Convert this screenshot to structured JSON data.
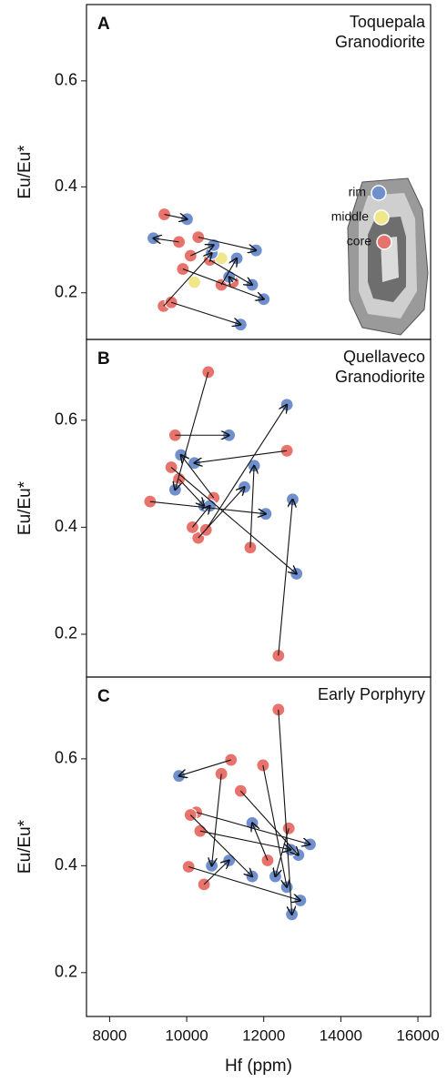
{
  "chart_data": [
    {
      "type": "scatter",
      "panel": "A",
      "title": "Toquepala Granodiorite",
      "ylabel": "Eu/Eu*",
      "xlim": [
        7400,
        16330
      ],
      "ylim": [
        0.112,
        0.744
      ],
      "yticks": [
        0.2,
        0.4,
        0.6
      ],
      "series": [
        {
          "name": "core",
          "color": "#e8736c",
          "x": [
            9420,
            9800,
            9400,
            9600,
            10300,
            9900,
            10600,
            10900,
            10100,
            11200
          ],
          "values": [
            0.348,
            0.296,
            0.175,
            0.182,
            0.305,
            0.245,
            0.262,
            0.215,
            0.27,
            0.22
          ]
        },
        {
          "name": "middle",
          "color": "#f0e68a",
          "x": [
            10200,
            10900
          ],
          "values": [
            0.22,
            0.265
          ]
        },
        {
          "name": "rim",
          "color": "#6f8fce",
          "x": [
            10010,
            9136,
            10650,
            11400,
            11800,
            12000,
            11700,
            11300,
            10700,
            11100
          ],
          "values": [
            0.339,
            0.303,
            0.275,
            0.14,
            0.28,
            0.188,
            0.215,
            0.265,
            0.29,
            0.23
          ]
        }
      ]
    },
    {
      "type": "scatter",
      "panel": "B",
      "title": "Quellaveco Granodiorite",
      "ylabel": "Eu/Eu*",
      "xlim": [
        7400,
        16330
      ],
      "ylim": [
        0.12,
        0.751
      ],
      "yticks": [
        0.2,
        0.4,
        0.6
      ],
      "series": [
        {
          "color": "#e8736c",
          "x": [
            10560,
            9700,
            12600,
            12380,
            11650,
            9050,
            9600,
            10300,
            10500,
            9800,
            10150,
            10700
          ],
          "values": [
            0.69,
            0.572,
            0.543,
            0.16,
            0.362,
            0.448,
            0.512,
            0.38,
            0.395,
            0.49,
            0.4,
            0.455
          ]
        },
        {
          "color": "#6f8fce",
          "x": [
            9700,
            11100,
            10200,
            12750,
            11750,
            12050,
            12850,
            11500,
            12600,
            10450,
            10600,
            9850
          ],
          "values": [
            0.47,
            0.572,
            0.52,
            0.452,
            0.515,
            0.425,
            0.313,
            0.475,
            0.629,
            0.44,
            0.44,
            0.535
          ]
        }
      ]
    },
    {
      "type": "scatter",
      "panel": "C",
      "title": "Early Porphyry",
      "ylabel": "Eu/Eu*",
      "xlabel": "Hf (ppm)",
      "xlim": [
        7400,
        16330
      ],
      "xticks": [
        8000,
        10000,
        12000,
        14000,
        16000
      ],
      "ylim": [
        0.118,
        0.753
      ],
      "yticks": [
        0.2,
        0.4,
        0.6
      ],
      "series": [
        {
          "color": "#e8736c",
          "x": [
            12380,
            11150,
            11980,
            10900,
            11400,
            10250,
            10350,
            10450,
            10050,
            10100,
            12100,
            12650
          ],
          "values": [
            0.692,
            0.598,
            0.588,
            0.572,
            0.54,
            0.5,
            0.465,
            0.365,
            0.398,
            0.495,
            0.41,
            0.47
          ]
        },
        {
          "color": "#6f8fce",
          "x": [
            12730,
            9800,
            12600,
            10650,
            12900,
            13200,
            12700,
            11100,
            12950,
            11700,
            11700,
            12300
          ],
          "values": [
            0.309,
            0.568,
            0.36,
            0.4,
            0.42,
            0.44,
            0.43,
            0.41,
            0.335,
            0.38,
            0.48,
            0.38
          ]
        }
      ]
    }
  ]
}
